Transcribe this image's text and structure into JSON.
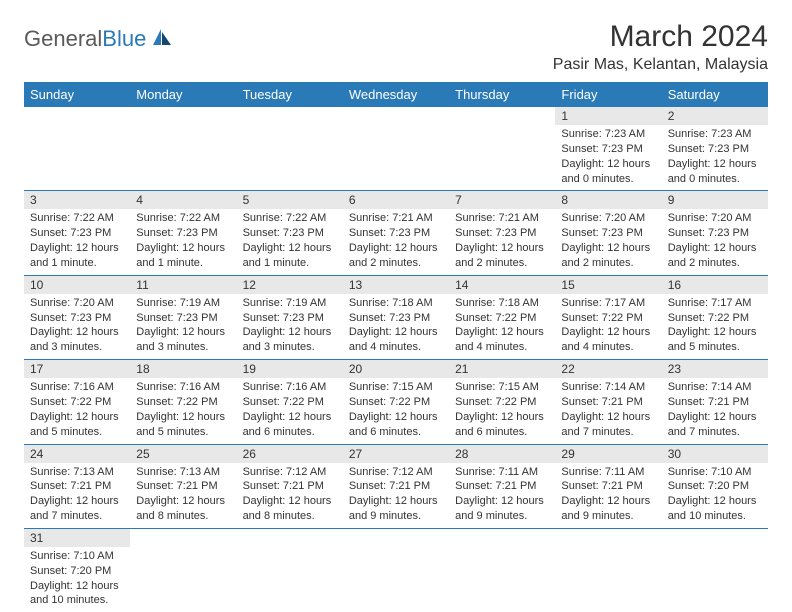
{
  "logo": {
    "general": "General",
    "blue": "Blue"
  },
  "title": "March 2024",
  "location": "Pasir Mas, Kelantan, Malaysia",
  "colors": {
    "header_bg": "#2a7ab8",
    "header_text": "#ffffff",
    "daynum_bg": "#e8e8e8",
    "border": "#2a7ab8",
    "text": "#333333"
  },
  "weekdays": [
    "Sunday",
    "Monday",
    "Tuesday",
    "Wednesday",
    "Thursday",
    "Friday",
    "Saturday"
  ],
  "weeks": [
    [
      null,
      null,
      null,
      null,
      null,
      {
        "n": "1",
        "sr": "Sunrise: 7:23 AM",
        "ss": "Sunset: 7:23 PM",
        "dl": "Daylight: 12 hours and 0 minutes."
      },
      {
        "n": "2",
        "sr": "Sunrise: 7:23 AM",
        "ss": "Sunset: 7:23 PM",
        "dl": "Daylight: 12 hours and 0 minutes."
      }
    ],
    [
      {
        "n": "3",
        "sr": "Sunrise: 7:22 AM",
        "ss": "Sunset: 7:23 PM",
        "dl": "Daylight: 12 hours and 1 minute."
      },
      {
        "n": "4",
        "sr": "Sunrise: 7:22 AM",
        "ss": "Sunset: 7:23 PM",
        "dl": "Daylight: 12 hours and 1 minute."
      },
      {
        "n": "5",
        "sr": "Sunrise: 7:22 AM",
        "ss": "Sunset: 7:23 PM",
        "dl": "Daylight: 12 hours and 1 minute."
      },
      {
        "n": "6",
        "sr": "Sunrise: 7:21 AM",
        "ss": "Sunset: 7:23 PM",
        "dl": "Daylight: 12 hours and 2 minutes."
      },
      {
        "n": "7",
        "sr": "Sunrise: 7:21 AM",
        "ss": "Sunset: 7:23 PM",
        "dl": "Daylight: 12 hours and 2 minutes."
      },
      {
        "n": "8",
        "sr": "Sunrise: 7:20 AM",
        "ss": "Sunset: 7:23 PM",
        "dl": "Daylight: 12 hours and 2 minutes."
      },
      {
        "n": "9",
        "sr": "Sunrise: 7:20 AM",
        "ss": "Sunset: 7:23 PM",
        "dl": "Daylight: 12 hours and 2 minutes."
      }
    ],
    [
      {
        "n": "10",
        "sr": "Sunrise: 7:20 AM",
        "ss": "Sunset: 7:23 PM",
        "dl": "Daylight: 12 hours and 3 minutes."
      },
      {
        "n": "11",
        "sr": "Sunrise: 7:19 AM",
        "ss": "Sunset: 7:23 PM",
        "dl": "Daylight: 12 hours and 3 minutes."
      },
      {
        "n": "12",
        "sr": "Sunrise: 7:19 AM",
        "ss": "Sunset: 7:23 PM",
        "dl": "Daylight: 12 hours and 3 minutes."
      },
      {
        "n": "13",
        "sr": "Sunrise: 7:18 AM",
        "ss": "Sunset: 7:23 PM",
        "dl": "Daylight: 12 hours and 4 minutes."
      },
      {
        "n": "14",
        "sr": "Sunrise: 7:18 AM",
        "ss": "Sunset: 7:22 PM",
        "dl": "Daylight: 12 hours and 4 minutes."
      },
      {
        "n": "15",
        "sr": "Sunrise: 7:17 AM",
        "ss": "Sunset: 7:22 PM",
        "dl": "Daylight: 12 hours and 4 minutes."
      },
      {
        "n": "16",
        "sr": "Sunrise: 7:17 AM",
        "ss": "Sunset: 7:22 PM",
        "dl": "Daylight: 12 hours and 5 minutes."
      }
    ],
    [
      {
        "n": "17",
        "sr": "Sunrise: 7:16 AM",
        "ss": "Sunset: 7:22 PM",
        "dl": "Daylight: 12 hours and 5 minutes."
      },
      {
        "n": "18",
        "sr": "Sunrise: 7:16 AM",
        "ss": "Sunset: 7:22 PM",
        "dl": "Daylight: 12 hours and 5 minutes."
      },
      {
        "n": "19",
        "sr": "Sunrise: 7:16 AM",
        "ss": "Sunset: 7:22 PM",
        "dl": "Daylight: 12 hours and 6 minutes."
      },
      {
        "n": "20",
        "sr": "Sunrise: 7:15 AM",
        "ss": "Sunset: 7:22 PM",
        "dl": "Daylight: 12 hours and 6 minutes."
      },
      {
        "n": "21",
        "sr": "Sunrise: 7:15 AM",
        "ss": "Sunset: 7:22 PM",
        "dl": "Daylight: 12 hours and 6 minutes."
      },
      {
        "n": "22",
        "sr": "Sunrise: 7:14 AM",
        "ss": "Sunset: 7:21 PM",
        "dl": "Daylight: 12 hours and 7 minutes."
      },
      {
        "n": "23",
        "sr": "Sunrise: 7:14 AM",
        "ss": "Sunset: 7:21 PM",
        "dl": "Daylight: 12 hours and 7 minutes."
      }
    ],
    [
      {
        "n": "24",
        "sr": "Sunrise: 7:13 AM",
        "ss": "Sunset: 7:21 PM",
        "dl": "Daylight: 12 hours and 7 minutes."
      },
      {
        "n": "25",
        "sr": "Sunrise: 7:13 AM",
        "ss": "Sunset: 7:21 PM",
        "dl": "Daylight: 12 hours and 8 minutes."
      },
      {
        "n": "26",
        "sr": "Sunrise: 7:12 AM",
        "ss": "Sunset: 7:21 PM",
        "dl": "Daylight: 12 hours and 8 minutes."
      },
      {
        "n": "27",
        "sr": "Sunrise: 7:12 AM",
        "ss": "Sunset: 7:21 PM",
        "dl": "Daylight: 12 hours and 9 minutes."
      },
      {
        "n": "28",
        "sr": "Sunrise: 7:11 AM",
        "ss": "Sunset: 7:21 PM",
        "dl": "Daylight: 12 hours and 9 minutes."
      },
      {
        "n": "29",
        "sr": "Sunrise: 7:11 AM",
        "ss": "Sunset: 7:21 PM",
        "dl": "Daylight: 12 hours and 9 minutes."
      },
      {
        "n": "30",
        "sr": "Sunrise: 7:10 AM",
        "ss": "Sunset: 7:20 PM",
        "dl": "Daylight: 12 hours and 10 minutes."
      }
    ],
    [
      {
        "n": "31",
        "sr": "Sunrise: 7:10 AM",
        "ss": "Sunset: 7:20 PM",
        "dl": "Daylight: 12 hours and 10 minutes."
      },
      null,
      null,
      null,
      null,
      null,
      null
    ]
  ]
}
